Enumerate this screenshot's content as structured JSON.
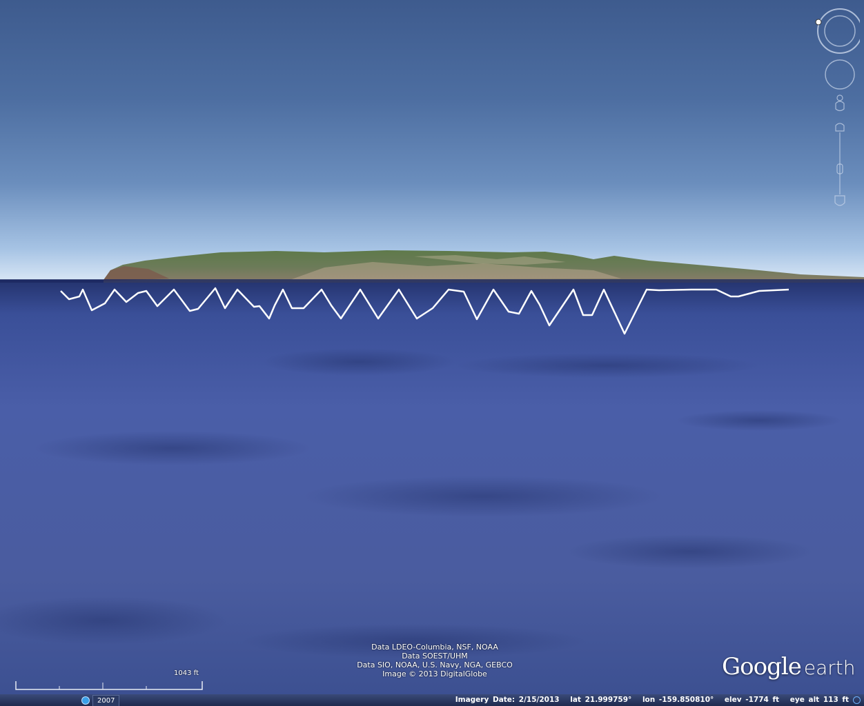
{
  "attribution": {
    "lines": [
      "Data LDEO-Columbia, NSF, NOAA",
      "Data SOEST/UHM",
      "Data SIO, NOAA, U.S. Navy, NGA, GEBCO",
      "Image © 2013 DigitalGlobe"
    ]
  },
  "logo": {
    "google": "Google",
    "earth": "earth"
  },
  "scale": {
    "label": "1043 ft"
  },
  "historical": {
    "year": "2007"
  },
  "status": {
    "imagery_date": "Imagery Date: 2/15/2013",
    "lat": "lat  21.999759°",
    "lon": "lon -159.850810°",
    "elev": "elev -1774 ft",
    "eye_alt": "eye alt   113 ft"
  },
  "colors": {
    "track": "#ffffff",
    "ocean": "#4a5ea8",
    "sky_top": "#3e5b8e"
  },
  "icons": {
    "navigation": [
      "north-ring-icon",
      "look-joystick-icon",
      "pegman-icon",
      "zoom-slider-icon"
    ],
    "historical": "clock-icon"
  }
}
